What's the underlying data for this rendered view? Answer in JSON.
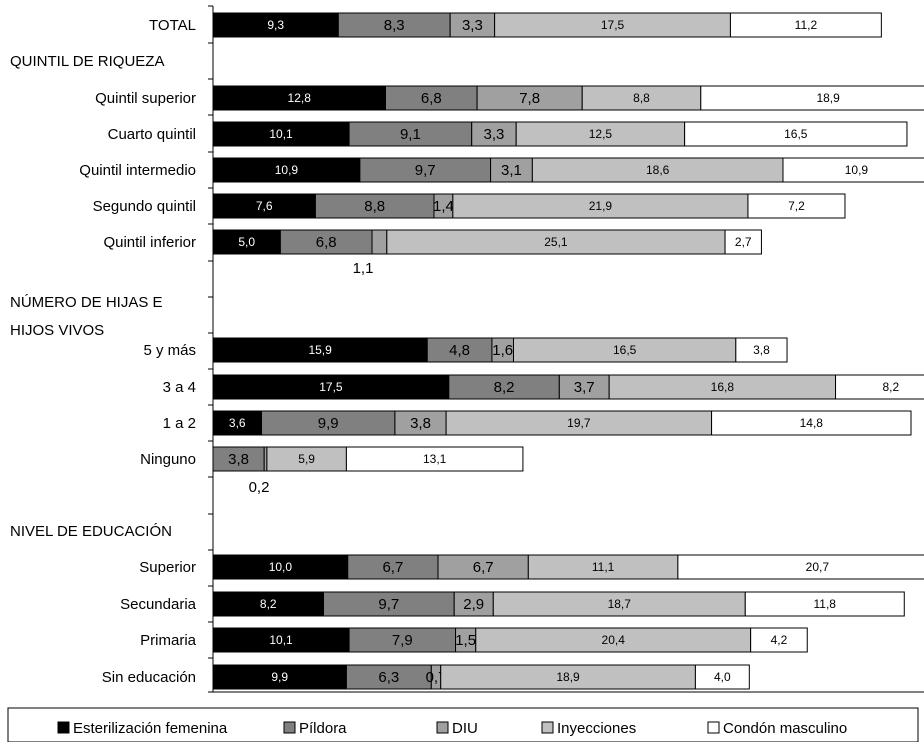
{
  "chart_data": {
    "type": "bar",
    "orientation": "horizontal",
    "stacked": true,
    "categories": [
      "TOTAL",
      "QUINTIL DE RIQUEZA",
      "Quintil superior",
      "Cuarto quintil",
      "Quintil intermedio",
      "Segundo quintil",
      "Quintil inferior",
      "NÚMERO DE HIJAS E HIJOS VIVOS",
      "5 y más",
      "3 a 4",
      "1 a 2",
      "Ninguno",
      "NIVEL DE EDUCACIÓN",
      "Superior",
      "Secundaria",
      "Primaria",
      "Sin educación"
    ],
    "series": [
      {
        "name": "Esterilización femenina",
        "color": "#000000",
        "values": [
          9.3,
          null,
          12.8,
          10.1,
          10.9,
          7.6,
          5.0,
          null,
          15.9,
          17.5,
          3.6,
          0,
          null,
          10.0,
          8.2,
          10.1,
          9.9
        ]
      },
      {
        "name": "Píldora",
        "color": "#808080",
        "values": [
          8.3,
          null,
          6.8,
          9.1,
          9.7,
          8.8,
          6.8,
          null,
          4.8,
          8.2,
          9.9,
          3.8,
          null,
          6.7,
          9.7,
          7.9,
          6.3
        ]
      },
      {
        "name": "DIU",
        "color": "#a0a0a0",
        "values": [
          3.3,
          null,
          7.8,
          3.3,
          3.1,
          1.4,
          1.1,
          null,
          1.6,
          3.7,
          3.8,
          0.2,
          null,
          6.7,
          2.9,
          1.5,
          0.7
        ]
      },
      {
        "name": "Inyecciones",
        "color": "#c0c0c0",
        "values": [
          17.5,
          null,
          8.8,
          12.5,
          18.6,
          21.9,
          25.1,
          null,
          16.5,
          16.8,
          19.7,
          5.9,
          null,
          11.1,
          18.7,
          20.4,
          18.9
        ]
      },
      {
        "name": "Condón  masculino",
        "color": "#ffffff",
        "values": [
          11.2,
          null,
          18.9,
          16.5,
          10.9,
          7.2,
          2.7,
          null,
          3.8,
          8.2,
          14.8,
          13.1,
          null,
          20.7,
          11.8,
          4.2,
          4.0
        ]
      }
    ],
    "value_labels": [
      [
        "9,3",
        "8,3",
        "3,3",
        "17,5",
        "11,2"
      ],
      null,
      [
        "12,8",
        "6,8",
        "7,8",
        "8,8",
        "18,9"
      ],
      [
        "10,1",
        "9,1",
        "3,3",
        "12,5",
        "16,5"
      ],
      [
        "10,9",
        "9,7",
        "3,1",
        "18,6",
        "10,9"
      ],
      [
        "7,6",
        "8,8",
        "1,4",
        "21,9",
        "7,2"
      ],
      [
        "5,0",
        "6,8",
        "1,1",
        "25,1",
        "2,7"
      ],
      null,
      [
        "15,9",
        "4,8",
        "1,6",
        "16,5",
        "3,8"
      ],
      [
        "17,5",
        "8,2",
        "3,7",
        "16,8",
        "8,2"
      ],
      [
        "3,6",
        "9,9",
        "3,8",
        "19,7",
        "14,8"
      ],
      [
        "",
        "3,8",
        "0,2",
        "5,9",
        "13,1"
      ],
      null,
      [
        "10,0",
        "6,7",
        "6,7",
        "11,1",
        "20,7"
      ],
      [
        "8,2",
        "9,7",
        "2,9",
        "18,7",
        "11,8"
      ],
      [
        "10,1",
        "7,9",
        "1,5",
        "20,4",
        "4,2"
      ],
      [
        "9,9",
        "6,3",
        "0,7",
        "18,9",
        "4,0"
      ]
    ],
    "xlim": [
      0,
      54
    ],
    "grid": false,
    "legend_position": "bottom"
  }
}
